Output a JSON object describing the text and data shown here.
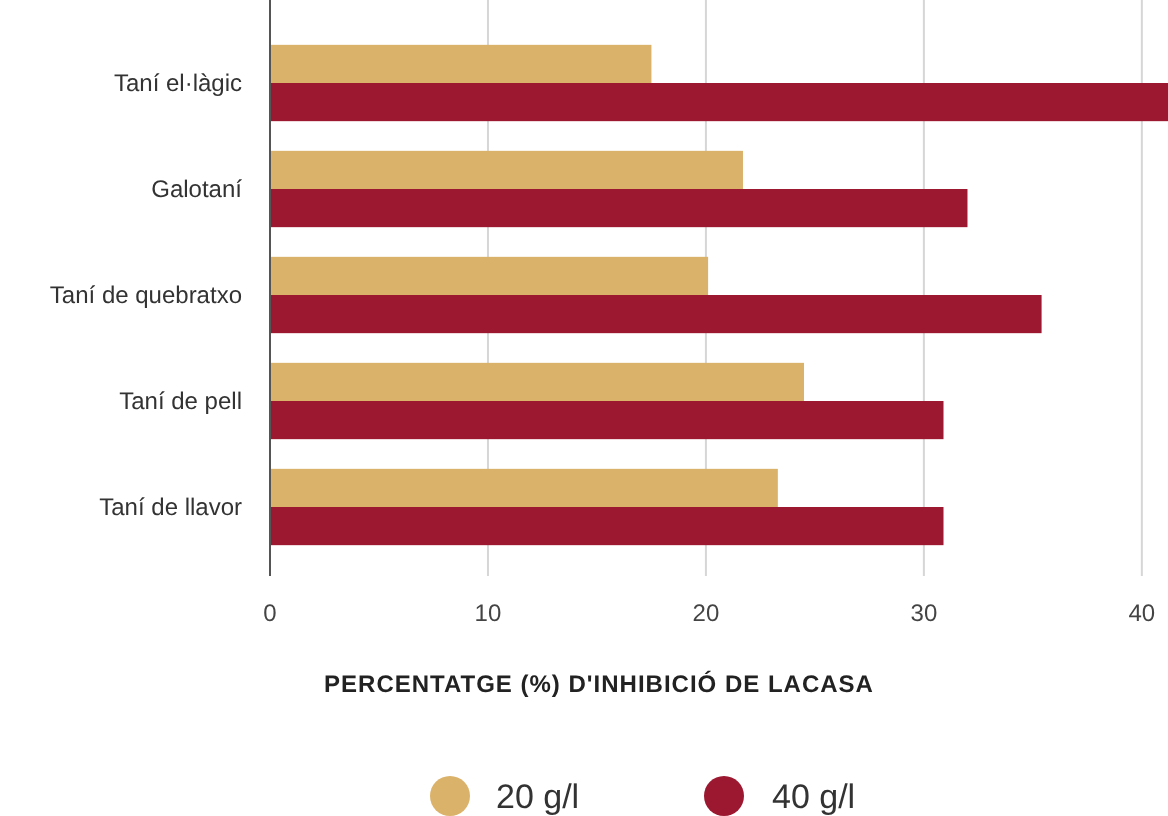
{
  "chart_data": {
    "type": "bar",
    "orientation": "horizontal",
    "xlabel": "PERCENTATGE (%) D'INHIBICIÓ DE LACASA",
    "categories": [
      "Taní el·làgic",
      "Galotaní",
      "Taní de quebratxo",
      "Taní de pell",
      "Taní de llavor"
    ],
    "series": [
      {
        "name": "20 g/l",
        "color": "#dbb26a",
        "values": [
          17.5,
          21.7,
          20.1,
          24.5,
          23.3
        ]
      },
      {
        "name": "40 g/l",
        "color": "#9b1830",
        "values": [
          41.2,
          32.0,
          35.4,
          30.9,
          30.9
        ]
      }
    ],
    "xlim": [
      0,
      41.2
    ],
    "xticks": [
      0,
      10,
      20,
      30,
      40
    ],
    "grid": "x",
    "legend": "bottom"
  }
}
